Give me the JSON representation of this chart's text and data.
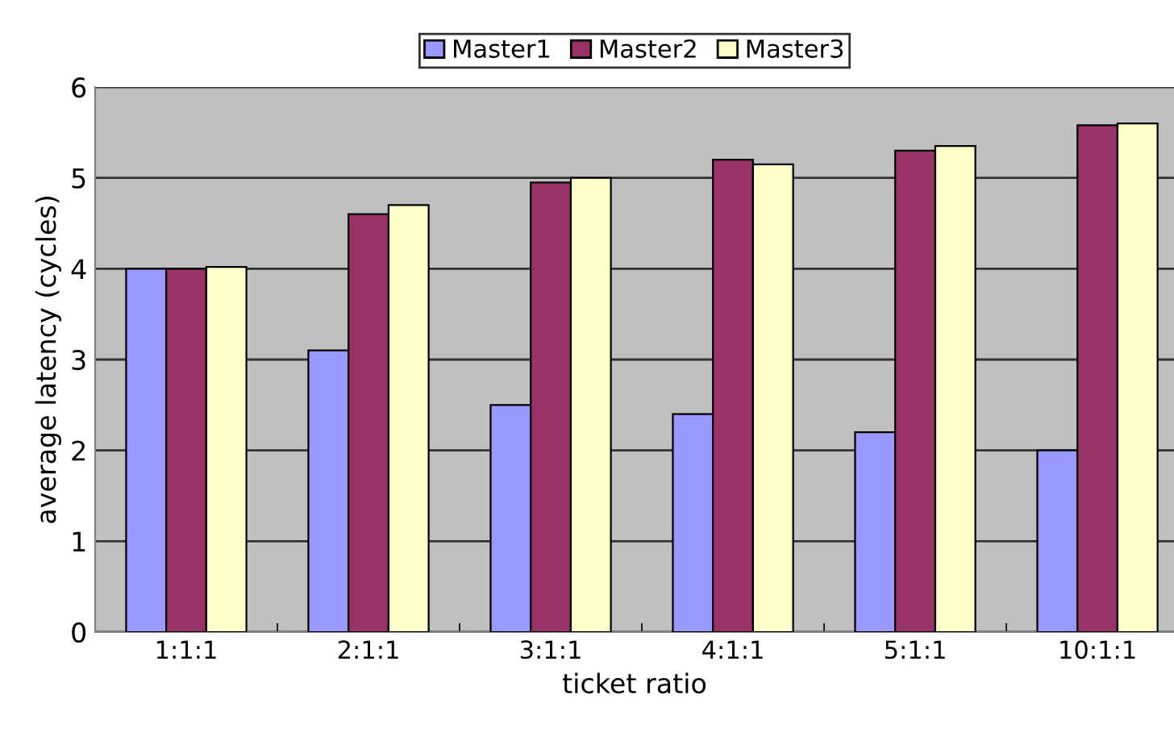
{
  "chart_data": {
    "type": "bar",
    "xlabel": "ticket ratio",
    "ylabel": "average latency (cycles)",
    "categories": [
      "1:1:1",
      "2:1:1",
      "3:1:1",
      "4:1:1",
      "5:1:1",
      "10:1:1"
    ],
    "series": [
      {
        "name": "Master1",
        "color": "#9999ff",
        "values": [
          4.0,
          3.1,
          2.5,
          2.4,
          2.2,
          2.0
        ]
      },
      {
        "name": "Master2",
        "color": "#993366",
        "values": [
          4.0,
          4.6,
          4.95,
          5.2,
          5.3,
          5.58
        ]
      },
      {
        "name": "Master3",
        "color": "#ffffcc",
        "values": [
          4.02,
          4.7,
          5.0,
          5.15,
          5.35,
          5.6
        ]
      }
    ],
    "ylim": [
      0,
      6
    ],
    "yticks": [
      0,
      1,
      2,
      3,
      4,
      5,
      6
    ],
    "grid": "y",
    "legend": "top"
  }
}
